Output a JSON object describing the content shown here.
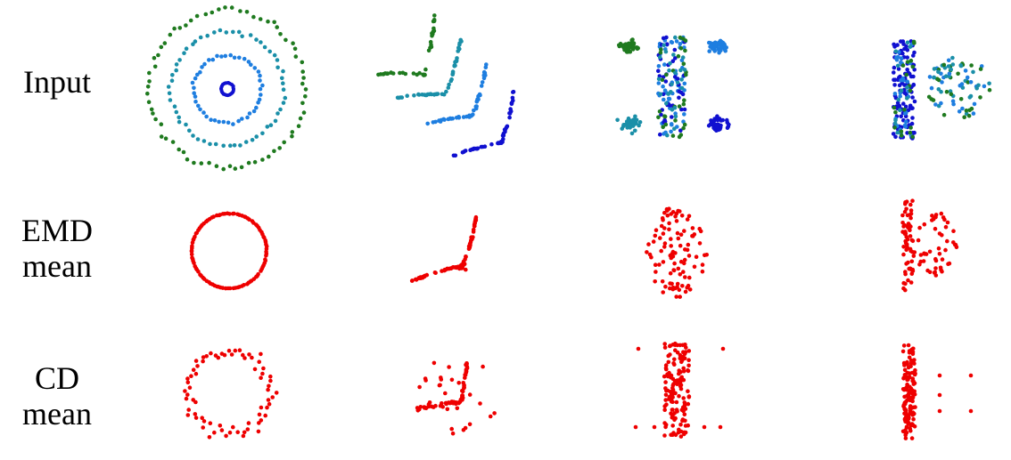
{
  "row_labels": {
    "input": [
      "Input",
      ""
    ],
    "emd": [
      "EMD",
      "mean"
    ],
    "cd": [
      "CD",
      "mean"
    ]
  },
  "colors": {
    "input_palette": [
      "#1f7a1f",
      "#1a8fa8",
      "#1e7ee0",
      "#1010d0"
    ],
    "mean": "#ee0000"
  },
  "panels": [
    {
      "row": "input",
      "shape": "concentric-rings"
    },
    {
      "row": "input",
      "shape": "nested-bent-curves"
    },
    {
      "row": "input",
      "shape": "bar-with-corner-blobs"
    },
    {
      "row": "input",
      "shape": "bar-and-circle"
    },
    {
      "row": "emd",
      "shape": "ring"
    },
    {
      "row": "emd",
      "shape": "bent-curve"
    },
    {
      "row": "emd",
      "shape": "blob"
    },
    {
      "row": "emd",
      "shape": "bar-and-circle"
    },
    {
      "row": "cd",
      "shape": "noisy-ring"
    },
    {
      "row": "cd",
      "shape": "noisy-bent-curve"
    },
    {
      "row": "cd",
      "shape": "bar-with-outliers"
    },
    {
      "row": "cd",
      "shape": "bar-with-outliers"
    }
  ]
}
